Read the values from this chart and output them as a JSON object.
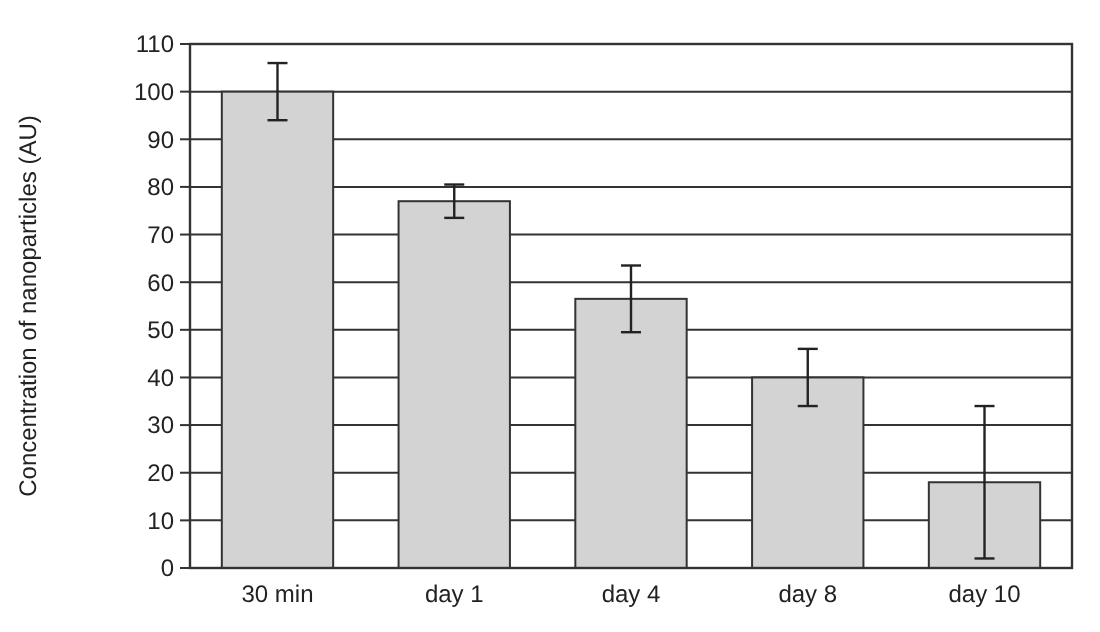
{
  "chart_data": {
    "type": "bar",
    "ylabel": "Concentration of nanoparticles (AU)",
    "categories": [
      "30 min",
      "day 1",
      "day 4",
      "day 8",
      "day 10"
    ],
    "values": [
      100,
      77,
      56.5,
      40,
      18
    ],
    "color": "#d3d3d3",
    "errors": [
      [
        94,
        106
      ],
      [
        73.5,
        80.5
      ],
      [
        49.5,
        63.5
      ],
      [
        34,
        46
      ],
      [
        2,
        34
      ]
    ],
    "ylim": [
      0,
      110
    ],
    "yticks": [
      0,
      10,
      20,
      30,
      40,
      50,
      60,
      70,
      80,
      90,
      100,
      110
    ],
    "grid": "y"
  }
}
